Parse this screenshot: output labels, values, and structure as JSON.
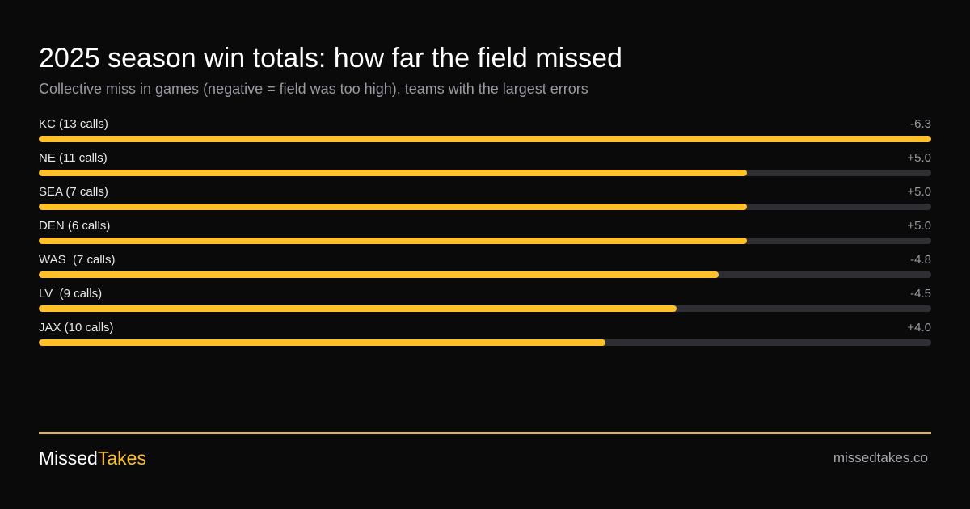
{
  "title": "2025 season win totals: how far the field missed",
  "subtitle": "Collective miss in games (negative = field was too high), teams with the largest errors",
  "colors": {
    "background": "#0a0a0a",
    "accent": "#ffc02a",
    "track": "#2e2e33",
    "rule": "#e7b34a"
  },
  "chart_data": {
    "type": "bar",
    "orientation": "horizontal",
    "title": "2025 season win totals: how far the field missed",
    "subtitle": "Collective miss in games (negative = field was too high), teams with the largest errors",
    "categories": [
      "KC (13 calls)",
      "NE (11 calls)",
      "SEA (7 calls)",
      "DEN (6 calls)",
      "WAS  (7 calls)",
      "LV  (9 calls)",
      "JAX (10 calls)"
    ],
    "values": [
      -6.3,
      5.0,
      5.0,
      5.0,
      -4.8,
      -4.5,
      4.0
    ],
    "value_labels": [
      "-6.3",
      "+5.0",
      "+5.0",
      "+5.0",
      "-4.8",
      "-4.5",
      "+4.0"
    ],
    "bar_scale": "absolute value, max = 6.3"
  },
  "footer": {
    "brand_part1": "Missed",
    "brand_part2": "Takes",
    "site": "missedtakes.co"
  }
}
